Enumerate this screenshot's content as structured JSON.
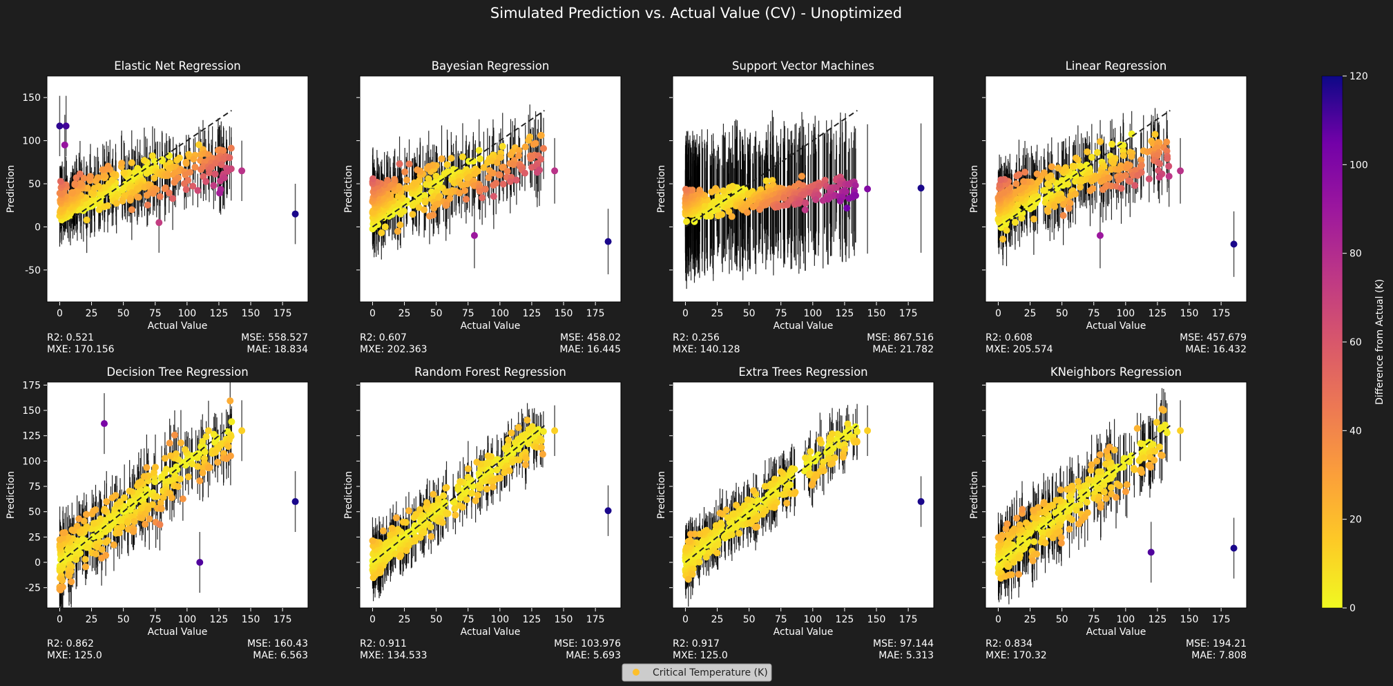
{
  "figure_title": "Simulated Prediction vs. Actual Value (CV) - Unoptimized",
  "legend_label": "Critical Temperature (K)",
  "colorbar": {
    "label": "Difference from Actual (K)",
    "range": [
      0,
      120
    ],
    "ticks": [
      "0",
      "20",
      "40",
      "60",
      "80",
      "100",
      "120"
    ],
    "colormap": "plasma (reversed)"
  },
  "chart_data": [
    {
      "type": "scatter",
      "title": "Elastic Net Regression",
      "xlabel": "Actual Value",
      "ylabel": "Prediction",
      "xlim": [
        -10,
        195
      ],
      "ylim": [
        -87,
        175
      ],
      "xticks": [
        0,
        25,
        50,
        75,
        100,
        125,
        150,
        175
      ],
      "yticks": [
        -50,
        0,
        50,
        100,
        150
      ],
      "fit": {
        "slope": 0.35,
        "intercept": 30,
        "noise": 12,
        "err": 35
      },
      "outliers": [
        {
          "x": 0,
          "y": 117,
          "d": 115
        },
        {
          "x": 5,
          "y": 117,
          "d": 112
        },
        {
          "x": 4,
          "y": 95,
          "d": 92
        },
        {
          "x": 78,
          "y": 5,
          "d": 72
        },
        {
          "x": 143,
          "y": 65,
          "d": 77
        },
        {
          "x": 185,
          "y": 15,
          "d": 118
        }
      ],
      "metrics": {
        "r2": "R2: 0.521",
        "mxe": "MXE: 170.156",
        "mse": "MSE: 558.527",
        "mae": "MAE: 18.834"
      }
    },
    {
      "type": "scatter",
      "title": "Bayesian Regression",
      "xlabel": "Actual Value",
      "ylabel": "Prediction",
      "xlim": [
        -10,
        195
      ],
      "ylim": [
        -87,
        175
      ],
      "xticks": [
        0,
        25,
        50,
        75,
        100,
        125,
        150,
        175
      ],
      "yticks": [
        -50,
        0,
        50,
        100,
        150
      ],
      "fit": {
        "slope": 0.45,
        "intercept": 25,
        "noise": 14,
        "err": 38
      },
      "outliers": [
        {
          "x": 80,
          "y": -10,
          "d": 90
        },
        {
          "x": 143,
          "y": 65,
          "d": 77
        },
        {
          "x": 185,
          "y": -17,
          "d": 118
        }
      ],
      "metrics": {
        "r2": "R2: 0.607",
        "mxe": "MXE: 202.363",
        "mse": "MSE: 458.02",
        "mae": "MAE: 16.445"
      }
    },
    {
      "type": "scatter",
      "title": "Support Vector Machines",
      "xlabel": "Actual Value",
      "ylabel": "Prediction",
      "xlim": [
        -10,
        195
      ],
      "ylim": [
        -87,
        175
      ],
      "xticks": [
        0,
        25,
        50,
        75,
        100,
        125,
        150,
        175
      ],
      "yticks": [
        -50,
        0,
        50,
        100,
        150
      ],
      "fit": {
        "slope": 0.15,
        "intercept": 25,
        "noise": 8,
        "err": 75
      },
      "outliers": [
        {
          "x": 143,
          "y": 44,
          "d": 99
        },
        {
          "x": 185,
          "y": 45,
          "d": 118
        }
      ],
      "metrics": {
        "r2": "R2: 0.256",
        "mxe": "MXE: 140.128",
        "mse": "MSE: 867.516",
        "mae": "MAE: 21.782"
      }
    },
    {
      "type": "scatter",
      "title": "Linear Regression",
      "xlabel": "Actual Value",
      "ylabel": "Prediction",
      "xlim": [
        -10,
        195
      ],
      "ylim": [
        -87,
        175
      ],
      "xticks": [
        0,
        25,
        50,
        75,
        100,
        125,
        150,
        175
      ],
      "yticks": [
        -50,
        0,
        50,
        100,
        150
      ],
      "fit": {
        "slope": 0.45,
        "intercept": 25,
        "noise": 14,
        "err": 38
      },
      "outliers": [
        {
          "x": 80,
          "y": -10,
          "d": 90
        },
        {
          "x": 143,
          "y": 65,
          "d": 77
        },
        {
          "x": 185,
          "y": -20,
          "d": 118
        }
      ],
      "metrics": {
        "r2": "R2: 0.608",
        "mxe": "MXE: 205.574",
        "mse": "MSE: 457.679",
        "mae": "MAE: 16.432"
      }
    },
    {
      "type": "scatter",
      "title": "Decision Tree Regression",
      "xlabel": "Actual Value",
      "ylabel": "Prediction",
      "xlim": [
        -10,
        195
      ],
      "ylim": [
        -45,
        178
      ],
      "xticks": [
        0,
        25,
        50,
        75,
        100,
        125,
        150,
        175
      ],
      "yticks": [
        -25,
        0,
        25,
        50,
        75,
        100,
        125,
        150,
        175
      ],
      "fit": {
        "slope": 0.95,
        "intercept": 2,
        "noise": 14,
        "err": 30
      },
      "outliers": [
        {
          "x": 35,
          "y": 137,
          "d": 102
        },
        {
          "x": 110,
          "y": 0,
          "d": 110
        },
        {
          "x": 143,
          "y": 130,
          "d": 13
        },
        {
          "x": 185,
          "y": 60,
          "d": 118
        }
      ],
      "metrics": {
        "r2": "R2: 0.862",
        "mxe": "MXE: 125.0",
        "mse": "MSE: 160.43",
        "mae": "MAE: 6.563"
      }
    },
    {
      "type": "scatter",
      "title": "Random Forest Regression",
      "xlabel": "Actual Value",
      "ylabel": "Prediction",
      "xlim": [
        -10,
        195
      ],
      "ylim": [
        -45,
        178
      ],
      "xticks": [
        0,
        25,
        50,
        75,
        100,
        125,
        150,
        175
      ],
      "yticks": [
        -25,
        0,
        25,
        50,
        75,
        100,
        125,
        150,
        175
      ],
      "fit": {
        "slope": 0.95,
        "intercept": 2,
        "noise": 9,
        "err": 25
      },
      "outliers": [
        {
          "x": 143,
          "y": 130,
          "d": 13
        },
        {
          "x": 185,
          "y": 51,
          "d": 118
        }
      ],
      "metrics": {
        "r2": "R2: 0.911",
        "mxe": "MXE: 134.533",
        "mse": "MSE: 103.976",
        "mae": "MAE: 5.693"
      }
    },
    {
      "type": "scatter",
      "title": "Extra Trees Regression",
      "xlabel": "Actual Value",
      "ylabel": "Prediction",
      "xlim": [
        -10,
        195
      ],
      "ylim": [
        -45,
        178
      ],
      "xticks": [
        0,
        25,
        50,
        75,
        100,
        125,
        150,
        175
      ],
      "yticks": [
        -25,
        0,
        25,
        50,
        75,
        100,
        125,
        150,
        175
      ],
      "fit": {
        "slope": 0.95,
        "intercept": 2,
        "noise": 9,
        "err": 25
      },
      "outliers": [
        {
          "x": 143,
          "y": 130,
          "d": 13
        },
        {
          "x": 185,
          "y": 60,
          "d": 118
        }
      ],
      "metrics": {
        "r2": "R2: 0.917",
        "mxe": "MXE: 125.0",
        "mse": "MSE: 97.144",
        "mae": "MAE: 5.313"
      }
    },
    {
      "type": "scatter",
      "title": "KNeighbors Regression",
      "xlabel": "Actual Value",
      "ylabel": "Prediction",
      "xlim": [
        -10,
        195
      ],
      "ylim": [
        -45,
        178
      ],
      "xticks": [
        0,
        25,
        50,
        75,
        100,
        125,
        150,
        175
      ],
      "yticks": [
        -25,
        0,
        25,
        50,
        75,
        100,
        125,
        150,
        175
      ],
      "fit": {
        "slope": 0.93,
        "intercept": 4,
        "noise": 13,
        "err": 30
      },
      "outliers": [
        {
          "x": 120,
          "y": 10,
          "d": 110
        },
        {
          "x": 143,
          "y": 130,
          "d": 13
        },
        {
          "x": 185,
          "y": 14,
          "d": 118
        }
      ],
      "metrics": {
        "r2": "R2: 0.834",
        "mxe": "MXE: 170.32",
        "mse": "MSE: 194.21",
        "mae": "MAE: 7.808"
      }
    }
  ]
}
